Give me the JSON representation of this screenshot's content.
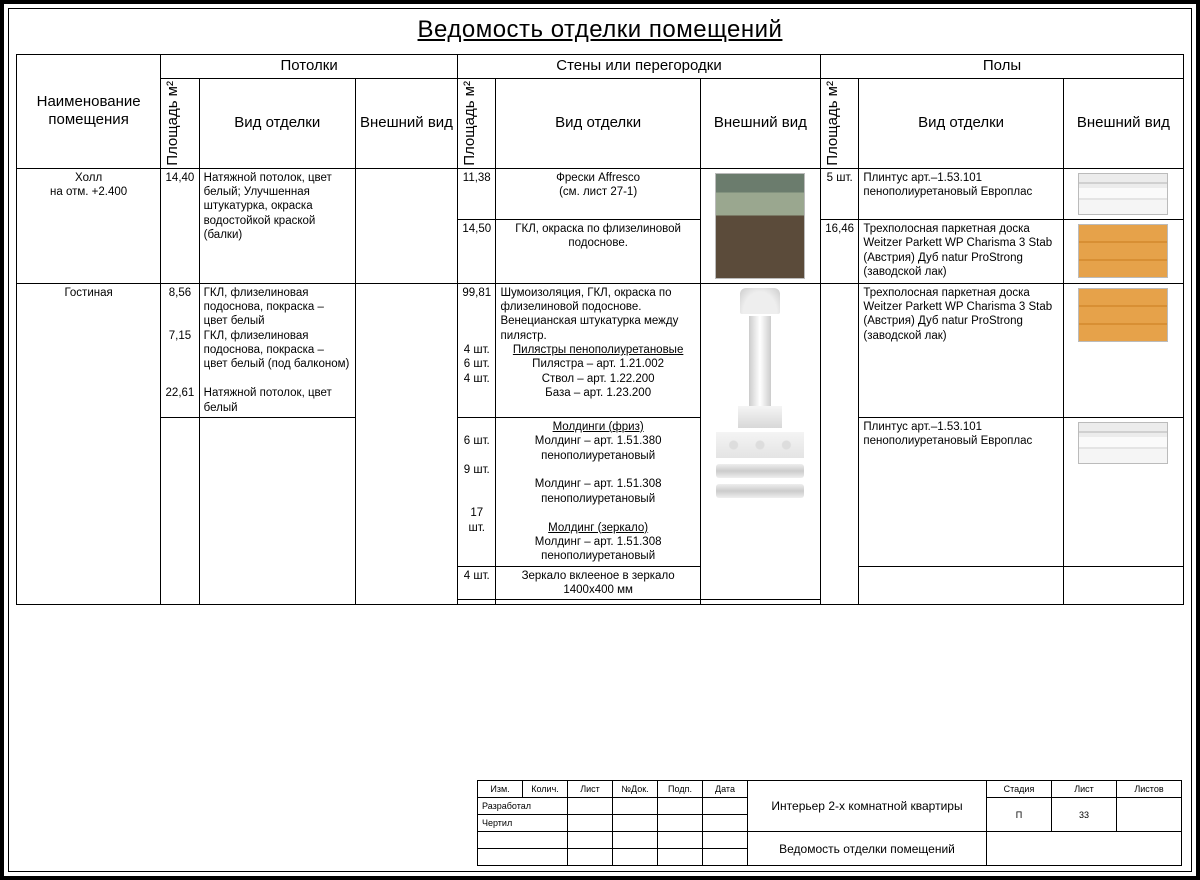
{
  "title": "Ведомость отделки помещений",
  "headers": {
    "room": "Наименование помещения",
    "group_ceiling": "Потолки",
    "group_walls": "Стены или перегородки",
    "group_floor": "Полы",
    "area": "Площадь м²",
    "finish": "Вид отделки",
    "look": "Внешний вид"
  },
  "rows": {
    "hall": {
      "name": "Холл\nна отм. +2.400",
      "ceil_area": "14,40",
      "ceil_desc": "Натяжной потолок, цвет белый; Улучшенная штукатурка, окраска водостойкой краской (балки)",
      "wall1_area": "11,38",
      "wall1_desc": "Фрески Affresco\n(см. лист 27-1)",
      "wall2_area": "14,50",
      "wall2_desc": "ГКЛ, окраска по флизелиновой подоснове.",
      "floor1_area": "5 шт.",
      "floor1_desc": "Плинтус арт.–1.53.101 пенополиуретановый Европлас",
      "floor2_area": "16,46",
      "floor2_desc": "Трехполосная паркетная доска Weitzer Parkett WP Charisma 3 Stab (Австрия) Дуб natur ProStrong (заводской лак)"
    },
    "living": {
      "name": "Гостиная",
      "ceil_a1": "8,56",
      "ceil_d1": "ГКЛ, флизелиновая подоснова, покраска – цвет белый",
      "ceil_a2": "7,15",
      "ceil_d2": "ГКЛ, флизелиновая подоснова, покраска – цвет белый (под балконом)",
      "ceil_a3": "22,61",
      "ceil_d3": "Натяжной потолок, цвет белый",
      "wall_a_main": "99,81",
      "wall_d_main": "Шумоизоляция, ГКЛ, окраска по флизелиновой подоснове. Венецианская штукатурка между пилястр.",
      "pilaster_hdr": "Пилястры пенополиуретановые",
      "pil_a1": "4 шт.",
      "pil_d1": "Пилястра – арт. 1.21.002",
      "pil_a2": "6 шт.",
      "pil_d2": "Ствол – арт. 1.22.200",
      "pil_a3": "4 шт.",
      "pil_d3": "База – арт. 1.23.200",
      "mold_hdr": "Молдинги (фриз)",
      "mold_a1": "6 шт.",
      "mold_d1": "Молдинг – арт. 1.51.380 пенополиуретановый",
      "mold_a2": "9 шт.",
      "mold_d2": "Молдинг – арт. 1.51.308 пенополиуретановый",
      "mirr_hdr": "Молдинг (зеркало)",
      "mirr_a": "17 шт.",
      "mirr_d": "Молдинг – арт. 1.51.308 пенополиуретановый",
      "glass_a": "4 шт.",
      "glass_d": "Зеркало вклееное в зеркало 1400х400 мм",
      "floor1_desc": "Трехполосная паркетная доска Weitzer Parkett WP Charisma 3 Stab (Австрия) Дуб natur ProStrong (заводской лак)",
      "floor2_desc": "Плинтус арт.–1.53.101 пенополиуретановый Европлас"
    }
  },
  "titleblock": {
    "h_izm": "Изм.",
    "h_kol": "Колич.",
    "h_list": "Лист",
    "h_ndok": "№Док.",
    "h_podp": "Подп.",
    "h_date": "Дата",
    "dev": "Разработал",
    "draft": "Чертил",
    "project": "Интерьер 2-х комнатной квартиры",
    "sheet_title": "Ведомость отделки помещений",
    "h_stadiya": "Стадия",
    "h_list2": "Лист",
    "h_listov": "Листов",
    "stadiya": "П",
    "list": "33",
    "listov": ""
  },
  "style": {
    "border_color": "#000000",
    "wood": "#e6a24a",
    "wood_dark": "#d88f34",
    "font": "Arial Narrow / Condensed",
    "title_fontsize": 24,
    "header_fontsize": 15,
    "cell_fontsize": 11
  }
}
